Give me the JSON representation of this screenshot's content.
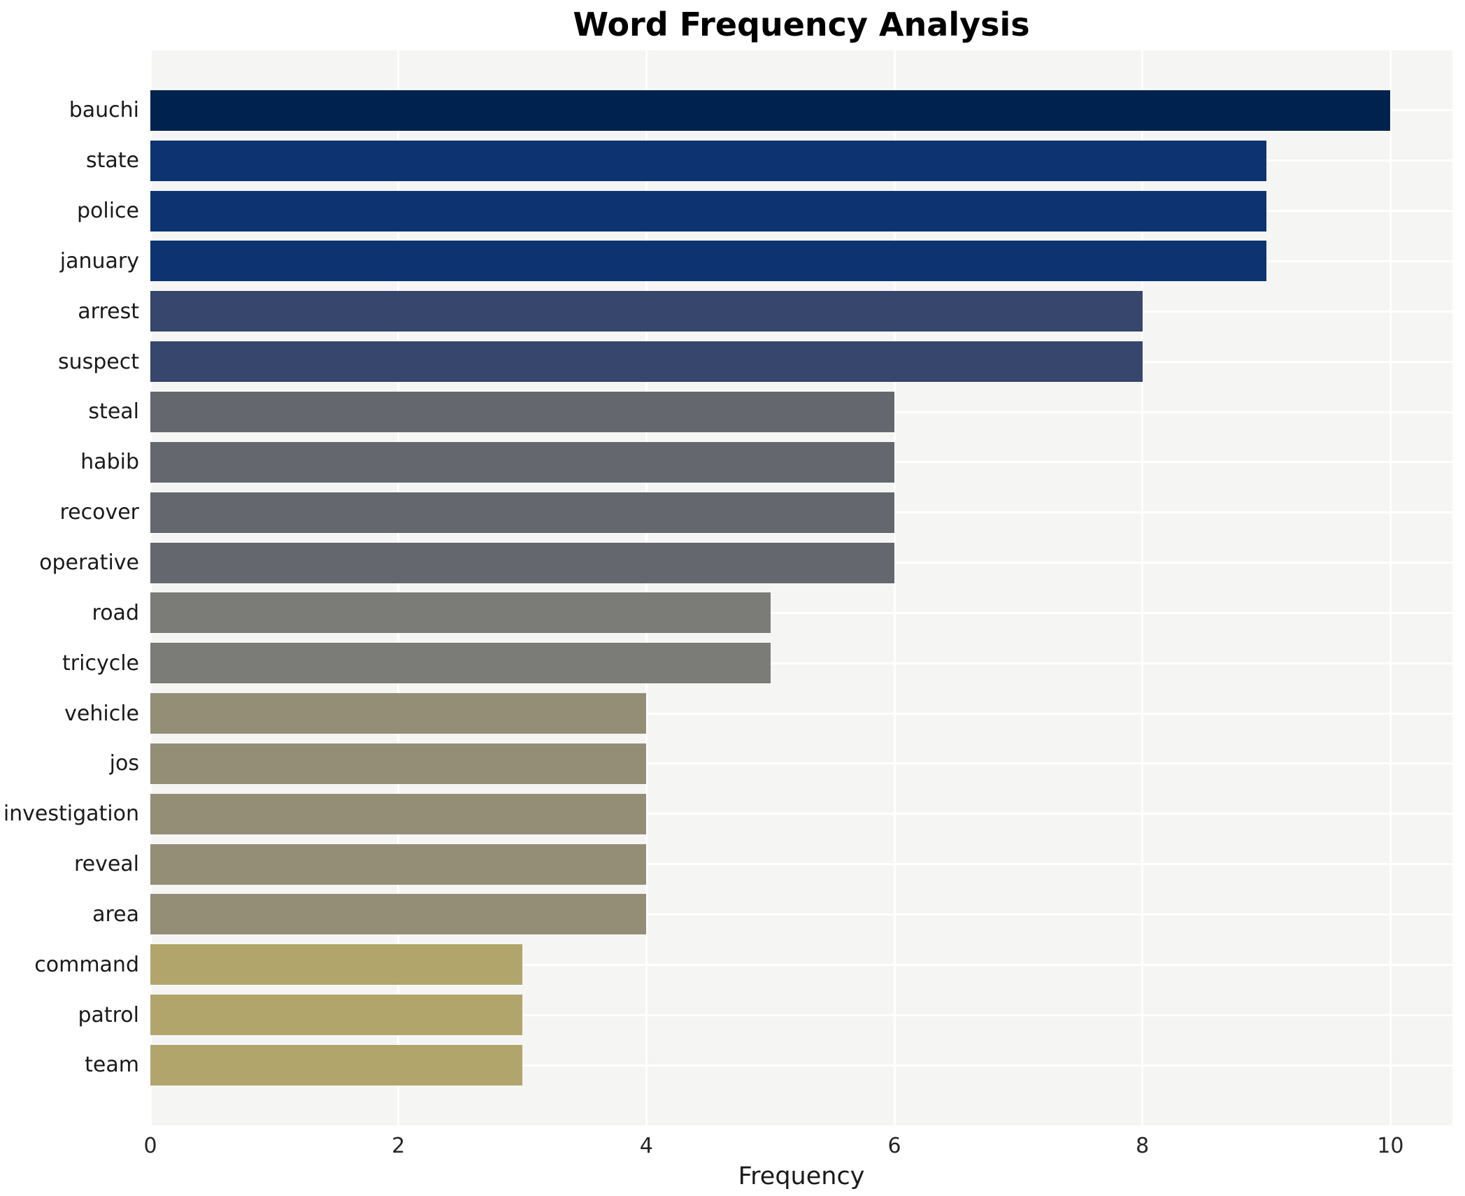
{
  "page": {
    "background": "#ffffff",
    "plot_background": "#f5f5f4",
    "grid_color": "#ffffff",
    "label_color": "#1a1a1a",
    "tick_color": "#262626"
  },
  "chart_data": {
    "type": "bar",
    "orientation": "horizontal",
    "title": "Word Frequency Analysis",
    "xlabel": "Frequency",
    "ylabel": "",
    "xlim": [
      0,
      10.5
    ],
    "xticks": [
      0,
      2,
      4,
      6,
      8,
      10
    ],
    "grid": true,
    "legend": false,
    "categories": [
      "bauchi",
      "state",
      "police",
      "january",
      "arrest",
      "suspect",
      "steal",
      "habib",
      "recover",
      "operative",
      "road",
      "tricycle",
      "vehicle",
      "jos",
      "investigation",
      "reveal",
      "area",
      "command",
      "patrol",
      "team"
    ],
    "values": [
      10,
      9,
      9,
      9,
      8,
      8,
      6,
      6,
      6,
      6,
      5,
      5,
      4,
      4,
      4,
      4,
      4,
      3,
      3,
      3
    ],
    "bars": [
      {
        "label": "bauchi",
        "value": 10,
        "color": "#00224e"
      },
      {
        "label": "state",
        "value": 9,
        "color": "#0d3371"
      },
      {
        "label": "police",
        "value": 9,
        "color": "#0d3371"
      },
      {
        "label": "january",
        "value": 9,
        "color": "#0d3371"
      },
      {
        "label": "arrest",
        "value": 8,
        "color": "#36466c"
      },
      {
        "label": "suspect",
        "value": 8,
        "color": "#36466c"
      },
      {
        "label": "steal",
        "value": 6,
        "color": "#65676e"
      },
      {
        "label": "habib",
        "value": 6,
        "color": "#65676e"
      },
      {
        "label": "recover",
        "value": 6,
        "color": "#65676e"
      },
      {
        "label": "operative",
        "value": 6,
        "color": "#65676e"
      },
      {
        "label": "road",
        "value": 5,
        "color": "#7b7b78"
      },
      {
        "label": "tricycle",
        "value": 5,
        "color": "#7b7b78"
      },
      {
        "label": "vehicle",
        "value": 4,
        "color": "#948e77"
      },
      {
        "label": "jos",
        "value": 4,
        "color": "#948e77"
      },
      {
        "label": "investigation",
        "value": 4,
        "color": "#948e77"
      },
      {
        "label": "reveal",
        "value": 4,
        "color": "#948e77"
      },
      {
        "label": "area",
        "value": 4,
        "color": "#948e77"
      },
      {
        "label": "command",
        "value": 3,
        "color": "#b1a56c"
      },
      {
        "label": "patrol",
        "value": 3,
        "color": "#b1a56c"
      },
      {
        "label": "team",
        "value": 3,
        "color": "#b1a56c"
      }
    ]
  }
}
